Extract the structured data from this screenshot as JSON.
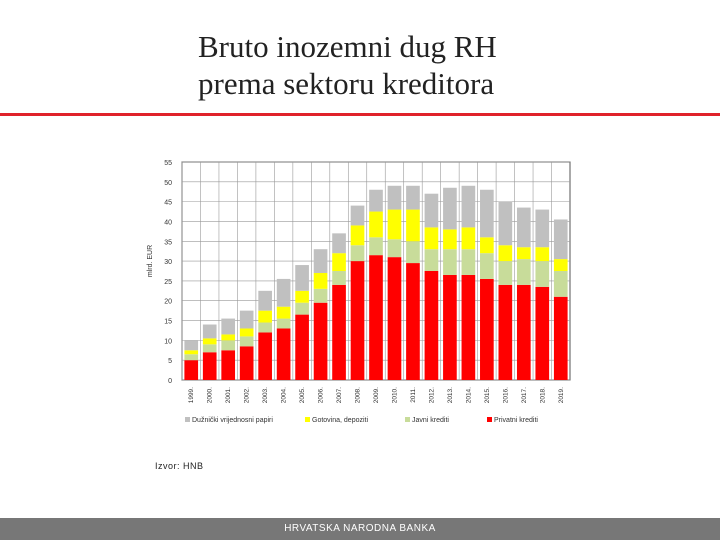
{
  "slide": {
    "title_line1": "Bruto inozemni dug RH",
    "title_line2": "prema sektoru kreditora",
    "source": "Izvor: HNB",
    "footer": "HRVATSKA NARODNA BANKA",
    "colors": {
      "rule": "#e0222a",
      "footer_bg": "#777777"
    }
  },
  "chart_data": {
    "type": "bar",
    "stacked": true,
    "ylabel": "mlrd. EUR",
    "ylim": [
      0,
      55
    ],
    "yticks": [
      0,
      5,
      10,
      15,
      20,
      25,
      30,
      35,
      40,
      45,
      50,
      55
    ],
    "grid": true,
    "legend_position": "bottom",
    "categories": [
      "1999.",
      "2000.",
      "2001.",
      "2002.",
      "2003.",
      "2004.",
      "2005.",
      "2006.",
      "2007.",
      "2008.",
      "2009.",
      "2010.",
      "2011.",
      "2012.",
      "2013.",
      "2014.",
      "2015.",
      "2016.",
      "2017.",
      "2018.",
      "2019."
    ],
    "series": [
      {
        "name": "Privatni krediti",
        "color": "#ff0000",
        "values": [
          5,
          7,
          7.5,
          8.5,
          12,
          13,
          16.5,
          19.5,
          24,
          30,
          31.5,
          31,
          29.5,
          27.5,
          26.5,
          26.5,
          25.5,
          24,
          24,
          23.5,
          21
        ]
      },
      {
        "name": "Javni krediti",
        "color": "#c8dc9a",
        "values": [
          1.5,
          2,
          2.5,
          2.5,
          2.5,
          2.5,
          3,
          3.5,
          3.5,
          4,
          4.5,
          4.5,
          5.5,
          5.5,
          6.5,
          6.5,
          6.5,
          6,
          6.5,
          6.5,
          6.5
        ]
      },
      {
        "name": "Gotovina, depoziti",
        "color": "#ffff00",
        "values": [
          1,
          1.5,
          1.5,
          2,
          3,
          3,
          3,
          4,
          4.5,
          5,
          6.5,
          7.5,
          8,
          5.5,
          5,
          5.5,
          4,
          4,
          3,
          3.5,
          3
        ]
      },
      {
        "name": "Dužnički vrijednosni papiri",
        "color": "#c0c0c0",
        "values": [
          2.5,
          3.5,
          4,
          4.5,
          5,
          7,
          6.5,
          6,
          5,
          5,
          5.5,
          6,
          6,
          8.5,
          10.5,
          10.5,
          12,
          11,
          10,
          9.5,
          10
        ]
      }
    ]
  }
}
